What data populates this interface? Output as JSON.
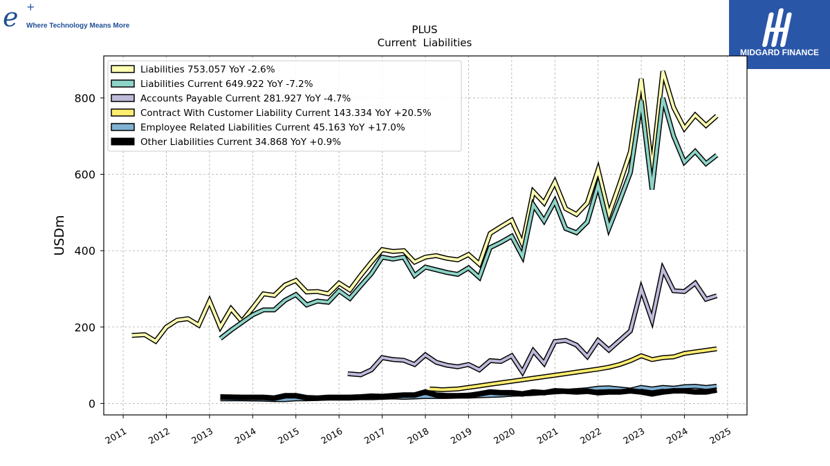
{
  "branding": {
    "left_logo_symbol": "e",
    "left_logo_superscript": "+",
    "left_logo_tagline": "Where Technology Means More",
    "right_logo_text": "MIDGARD FINANCE",
    "right_logo_color": "#2a56a8"
  },
  "chart_data": {
    "type": "line",
    "title": "PLUS",
    "subtitle": "Current  Liabilities",
    "xlabel": "",
    "ylabel": "USDm",
    "xlim": [
      2010.55,
      2025.45
    ],
    "ylim": [
      -30,
      910
    ],
    "x_ticks": [
      2011,
      2012,
      2013,
      2014,
      2015,
      2016,
      2017,
      2018,
      2019,
      2020,
      2021,
      2022,
      2023,
      2024,
      2025
    ],
    "x_tick_labels": [
      "2011",
      "2012",
      "2013",
      "2014",
      "2015",
      "2016",
      "2017",
      "2018",
      "2019",
      "2020",
      "2021",
      "2022",
      "2023",
      "2024",
      "2025"
    ],
    "y_ticks": [
      0,
      200,
      400,
      600,
      800
    ],
    "y_tick_labels": [
      "0",
      "200",
      "400",
      "600",
      "800"
    ],
    "grid": true,
    "legend_position": "top-left",
    "series": [
      {
        "name": "Liabilities  753.057 YoY -2.6%",
        "color": "#ffffb3",
        "x": [
          2011.2,
          2011.5,
          2011.75,
          2012.0,
          2012.25,
          2012.5,
          2012.75,
          2013.0,
          2013.25,
          2013.5,
          2013.75,
          2014.0,
          2014.25,
          2014.5,
          2014.75,
          2015.0,
          2015.25,
          2015.5,
          2015.75,
          2016.0,
          2016.25,
          2016.5,
          2016.75,
          2017.0,
          2017.25,
          2017.5,
          2017.75,
          2018.0,
          2018.25,
          2018.5,
          2018.75,
          2019.0,
          2019.25,
          2019.5,
          2019.75,
          2020.0,
          2020.25,
          2020.5,
          2020.75,
          2021.0,
          2021.25,
          2021.5,
          2021.75,
          2022.0,
          2022.25,
          2022.5,
          2022.75,
          2023.0,
          2023.25,
          2023.5,
          2023.75,
          2024.0,
          2024.25,
          2024.5,
          2024.75
        ],
        "values": [
          178,
          180,
          163,
          200,
          218,
          222,
          205,
          268,
          200,
          248,
          215,
          250,
          287,
          283,
          310,
          322,
          292,
          293,
          287,
          315,
          297,
          335,
          370,
          403,
          398,
          400,
          370,
          383,
          387,
          380,
          376,
          390,
          365,
          445,
          463,
          480,
          418,
          555,
          525,
          580,
          510,
          495,
          525,
          612,
          495,
          575,
          660,
          850,
          615,
          870,
          775,
          720,
          755,
          728,
          753
        ]
      },
      {
        "name": "Liabilities Current  649.922 YoY -7.2%",
        "color": "#8dd3c7",
        "x": [
          2013.25,
          2013.5,
          2013.75,
          2014.0,
          2014.25,
          2014.5,
          2014.75,
          2015.0,
          2015.25,
          2015.5,
          2015.75,
          2016.0,
          2016.25,
          2016.5,
          2016.75,
          2017.0,
          2017.25,
          2017.5,
          2017.75,
          2018.0,
          2018.25,
          2018.5,
          2018.75,
          2019.0,
          2019.25,
          2019.5,
          2019.75,
          2020.0,
          2020.25,
          2020.5,
          2020.75,
          2021.0,
          2021.25,
          2021.5,
          2021.75,
          2022.0,
          2022.25,
          2022.5,
          2022.75,
          2023.0,
          2023.25,
          2023.5,
          2023.75,
          2024.0,
          2024.25,
          2024.5,
          2024.75
        ],
        "values": [
          170,
          192,
          212,
          232,
          245,
          245,
          270,
          285,
          258,
          268,
          265,
          295,
          275,
          308,
          340,
          383,
          378,
          383,
          335,
          357,
          350,
          343,
          338,
          355,
          330,
          408,
          422,
          438,
          385,
          520,
          478,
          530,
          458,
          447,
          475,
          572,
          458,
          530,
          605,
          793,
          560,
          800,
          700,
          632,
          660,
          628,
          650
        ]
      },
      {
        "name": "Accounts Payable Current  281.927 YoY -4.7%",
        "color": "#bebada",
        "x": [
          2016.2,
          2016.5,
          2016.75,
          2017.0,
          2017.25,
          2017.5,
          2017.75,
          2018.0,
          2018.25,
          2018.5,
          2018.75,
          2019.0,
          2019.25,
          2019.5,
          2019.75,
          2020.0,
          2020.25,
          2020.5,
          2020.75,
          2021.0,
          2021.25,
          2021.5,
          2021.75,
          2022.0,
          2022.25,
          2022.5,
          2022.75,
          2023.0,
          2023.25,
          2023.5,
          2023.75,
          2024.0,
          2024.25,
          2024.5,
          2024.75
        ],
        "values": [
          78,
          75,
          88,
          120,
          115,
          113,
          102,
          127,
          108,
          100,
          96,
          102,
          88,
          112,
          110,
          125,
          82,
          138,
          105,
          162,
          165,
          153,
          123,
          165,
          140,
          165,
          190,
          300,
          218,
          352,
          295,
          293,
          315,
          273,
          282
        ]
      },
      {
        "name": "Contract With Customer Liability Current  143.334 YoY +20.5%",
        "color": "#ffed6f",
        "x": [
          2018.1,
          2018.4,
          2018.75,
          2019.0,
          2019.25,
          2019.5,
          2019.75,
          2020.0,
          2020.25,
          2020.5,
          2020.75,
          2021.0,
          2021.25,
          2021.5,
          2021.75,
          2022.0,
          2022.25,
          2022.5,
          2022.75,
          2023.0,
          2023.25,
          2023.5,
          2023.75,
          2024.0,
          2024.25,
          2024.5,
          2024.75
        ],
        "values": [
          38,
          36,
          38,
          42,
          46,
          50,
          54,
          58,
          62,
          66,
          70,
          74,
          78,
          82,
          86,
          90,
          95,
          102,
          112,
          125,
          115,
          120,
          122,
          131,
          135,
          139,
          143
        ]
      },
      {
        "name": "Employee Related Liabilities Current  45.163 YoY +17.0%",
        "color": "#80b1d3",
        "x": [
          2013.25,
          2013.75,
          2014.25,
          2014.5,
          2014.75,
          2015.0,
          2015.25,
          2015.5,
          2015.75,
          2016.0,
          2016.25,
          2016.5,
          2016.75,
          2017.0,
          2017.25,
          2017.5,
          2017.75,
          2018.0,
          2018.25,
          2018.5,
          2018.75,
          2019.0,
          2019.25,
          2019.5,
          2019.75,
          2020.0,
          2020.25,
          2020.5,
          2020.75,
          2021.0,
          2021.25,
          2021.5,
          2021.75,
          2022.0,
          2022.25,
          2022.5,
          2022.75,
          2023.0,
          2023.25,
          2023.5,
          2023.75,
          2024.0,
          2024.25,
          2024.5,
          2024.75
        ],
        "values": [
          12,
          12,
          11,
          10,
          10,
          12,
          12,
          13,
          14,
          14,
          14,
          15,
          15,
          16,
          17,
          16,
          17,
          18,
          18,
          18,
          19,
          19,
          20,
          21,
          22,
          24,
          25,
          26,
          28,
          30,
          32,
          34,
          36,
          40,
          41,
          38,
          35,
          42,
          38,
          42,
          40,
          44,
          45,
          42,
          45
        ]
      },
      {
        "name": "Other Liabilities Current  34.868 YoY +0.9%",
        "color": "#000000",
        "x": [
          2013.25,
          2013.75,
          2014.25,
          2014.5,
          2014.75,
          2015.0,
          2015.25,
          2015.5,
          2015.75,
          2016.0,
          2016.25,
          2016.5,
          2016.75,
          2017.0,
          2017.25,
          2017.5,
          2017.75,
          2018.0,
          2018.25,
          2018.5,
          2018.75,
          2019.0,
          2019.25,
          2019.5,
          2019.75,
          2020.0,
          2020.25,
          2020.5,
          2020.75,
          2021.0,
          2021.25,
          2021.5,
          2021.75,
          2022.0,
          2022.25,
          2022.5,
          2022.75,
          2023.0,
          2023.25,
          2023.5,
          2023.75,
          2024.0,
          2024.25,
          2024.5,
          2024.75
        ],
        "values": [
          17,
          16,
          16,
          14,
          20,
          20,
          15,
          14,
          16,
          16,
          16,
          17,
          19,
          18,
          20,
          22,
          22,
          30,
          22,
          20,
          20,
          21,
          25,
          30,
          28,
          28,
          25,
          30,
          28,
          33,
          32,
          30,
          32,
          28,
          30,
          30,
          33,
          30,
          25,
          30,
          33,
          33,
          30,
          30,
          35
        ]
      }
    ]
  }
}
